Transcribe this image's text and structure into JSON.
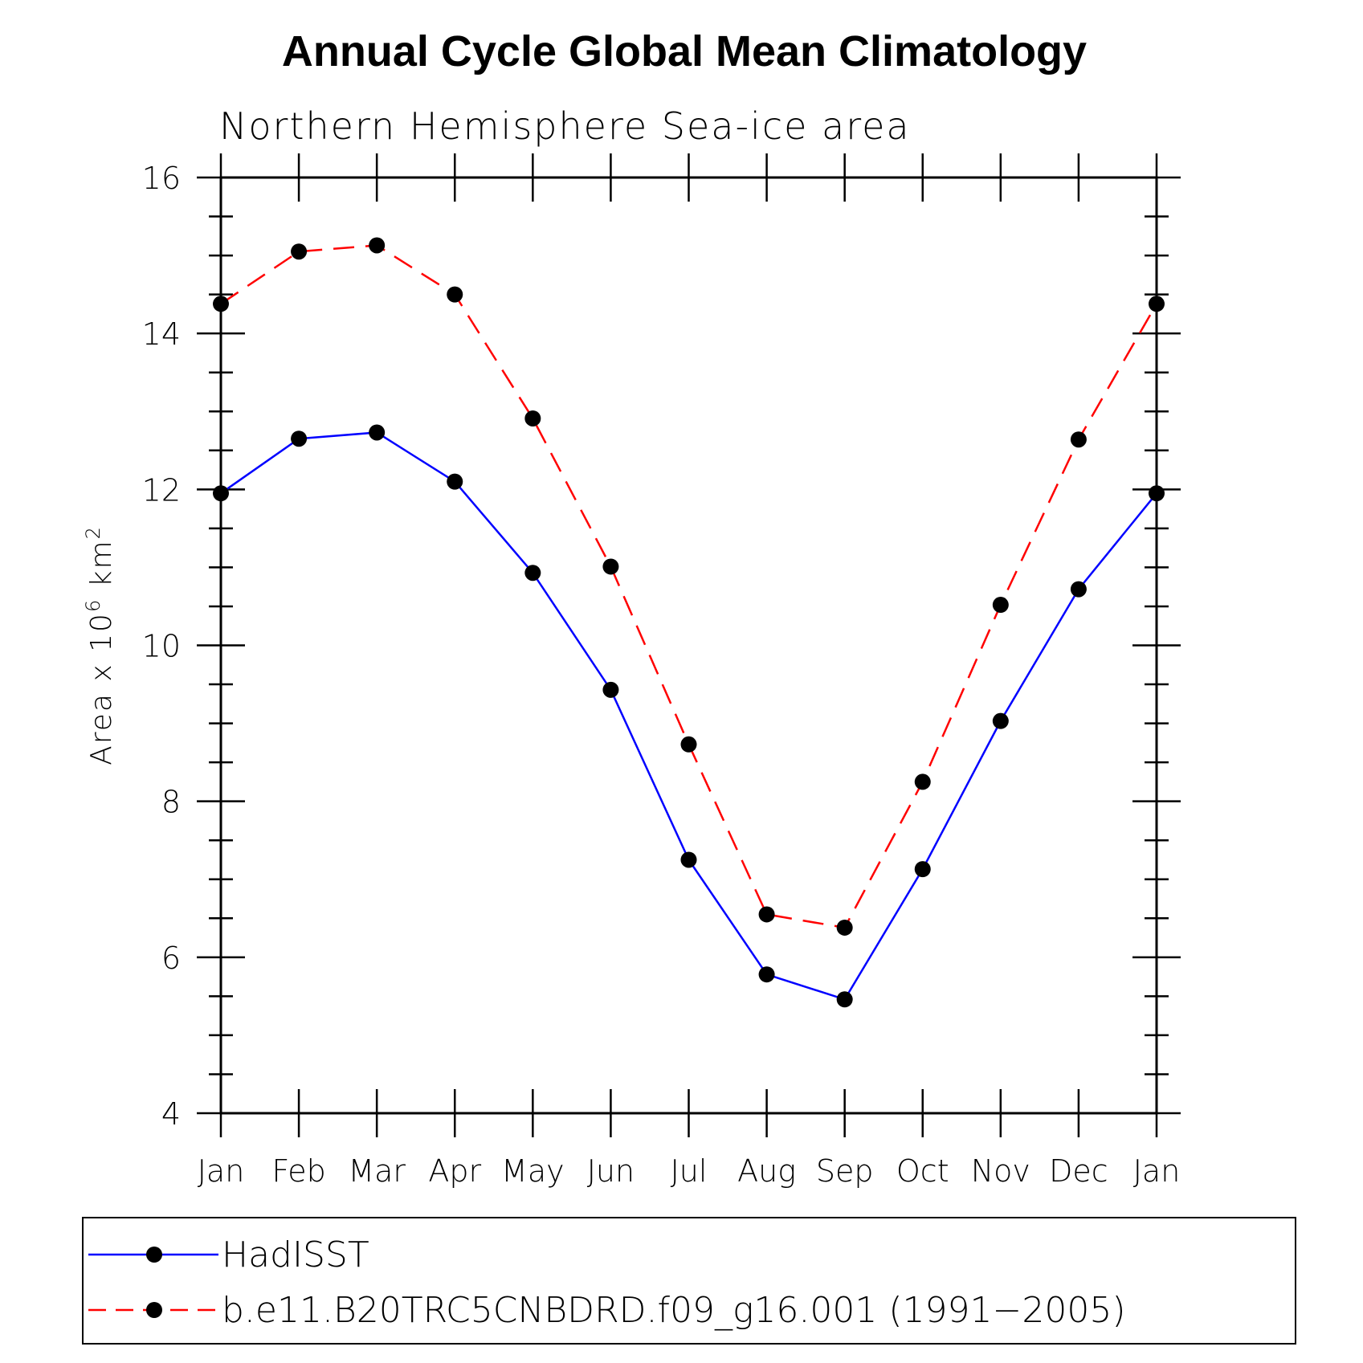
{
  "chart_data": {
    "type": "line",
    "title": "Annual Cycle Global Mean Climatology",
    "subtitle": "Northern Hemisphere Sea-ice area",
    "ylabel": "Area x 10",
    "ylabel_exp": "6",
    "ylabel_unit": "km",
    "ylabel_unit_exp": "2",
    "categories": [
      "Jan",
      "Feb",
      "Mar",
      "Apr",
      "May",
      "Jun",
      "Jul",
      "Aug",
      "Sep",
      "Oct",
      "Nov",
      "Dec",
      "Jan"
    ],
    "ylim": [
      4,
      16
    ],
    "yticks": [
      4,
      6,
      8,
      10,
      12,
      14,
      16
    ],
    "yticks_labels": [
      "4",
      "6",
      "8",
      "10",
      "12",
      "14",
      "16"
    ],
    "y_minor_step": 0.5,
    "grid": false,
    "legend_position": "bottom",
    "series": [
      {
        "name": "HadISST",
        "color": "#0000ff",
        "dash": "solid",
        "marker": "filled-circle",
        "values": [
          11.95,
          12.65,
          12.73,
          12.1,
          10.93,
          9.43,
          7.25,
          5.78,
          5.46,
          7.13,
          9.03,
          10.72,
          11.95
        ]
      },
      {
        "name": "b.e11.B20TRC5CNBDRD.f09_g16.001 (1991−2005)",
        "color": "#ff0000",
        "dash": "dashed",
        "marker": "filled-circle",
        "values": [
          14.38,
          15.05,
          15.13,
          14.5,
          12.91,
          11.01,
          8.73,
          6.55,
          6.38,
          8.25,
          10.52,
          12.64,
          14.38
        ]
      }
    ]
  }
}
